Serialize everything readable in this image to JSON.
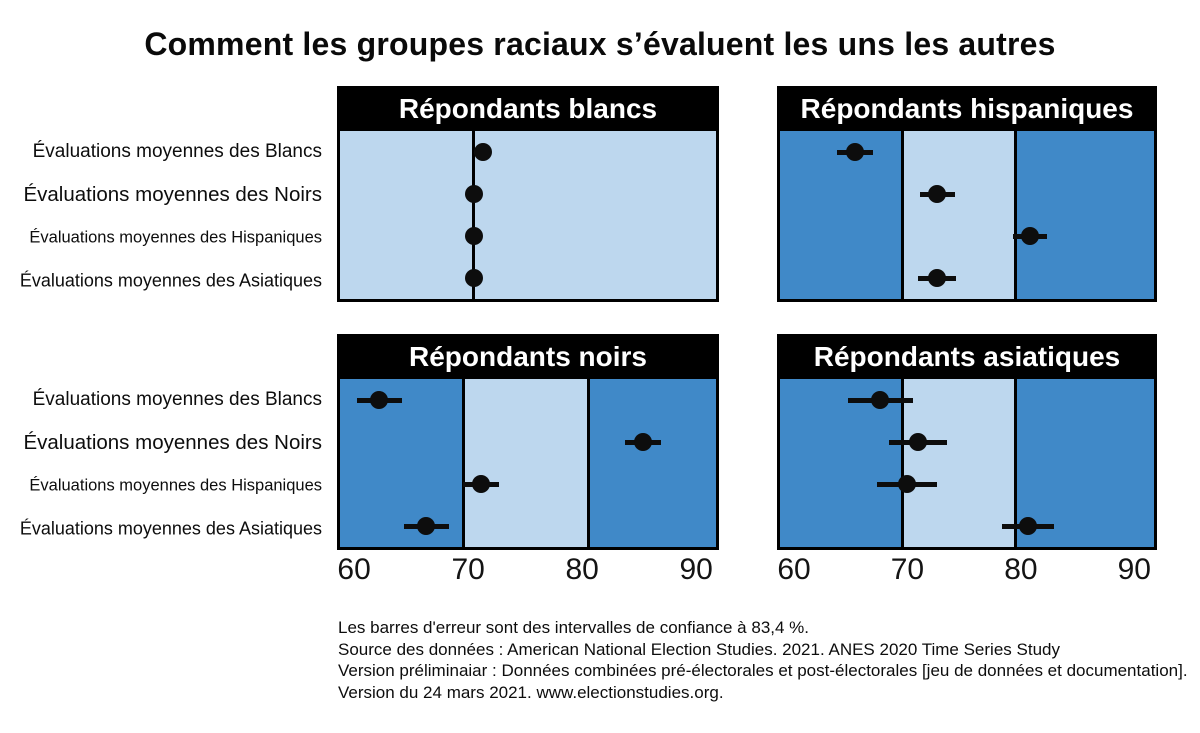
{
  "title": "Comment les groupes raciaux s’évaluent les uns les autres",
  "colors": {
    "dark_blue": "#4089c8",
    "light_blue": "#bdd7ee",
    "panel_header_bg": "#000000",
    "panel_header_text": "#ffffff",
    "point_color": "#0d0d0d"
  },
  "chart_data": {
    "type": "scatter",
    "title": "Comment les groupes raciaux s’évaluent les uns les autres",
    "categories": [
      "Évaluations moyennes des Blancs",
      "Évaluations moyennes des Noirs",
      "Évaluations moyennes des Hispaniques",
      "Évaluations moyennes des Asiatiques"
    ],
    "xlim": [
      58.5,
      92
    ],
    "xticks": [
      60,
      70,
      80,
      90
    ],
    "grid": false,
    "legend": "none",
    "panels": [
      {
        "title": "Répondants blancs",
        "values": [
          71.2,
          70.4,
          70.4,
          70.4
        ],
        "ci_halfwidth": [
          0.5,
          0.5,
          0.5,
          0.5
        ],
        "light_band": [
          58.5,
          92
        ],
        "ref_lines": [
          70.4
        ]
      },
      {
        "title": "Répondants hispaniques",
        "values": [
          65.2,
          72.6,
          80.9,
          72.6
        ],
        "ci_halfwidth": [
          1.6,
          1.6,
          1.5,
          1.7
        ],
        "light_band": [
          69.5,
          79.6
        ],
        "ref_lines": [
          69.5,
          79.6
        ]
      },
      {
        "title": "Répondants noirs",
        "values": [
          62.0,
          85.5,
          71.1,
          66.2
        ],
        "ci_halfwidth": [
          2.0,
          1.6,
          1.6,
          2.0
        ],
        "light_band": [
          69.5,
          80.6
        ],
        "ref_lines": [
          69.5,
          80.6
        ]
      },
      {
        "title": "Répondants asiatiques",
        "values": [
          67.5,
          70.9,
          69.9,
          80.7
        ],
        "ci_halfwidth": [
          2.9,
          2.6,
          2.7,
          2.3
        ],
        "light_band": [
          69.5,
          79.6
        ],
        "ref_lines": [
          69.5,
          79.6
        ]
      }
    ],
    "note": "Les barres d'erreur sont des intervalles de confiance à 83,4 %."
  },
  "footnote": {
    "line1": "Les barres d'erreur sont des intervalles de confiance à 83,4 %.",
    "line2": "Source des données : American National Election Studies. 2021. ANES 2020 Time Series Study",
    "line3": "Version préliminaiar : Données combinées pré-électorales et post-électorales [jeu de données et documentation].",
    "line4": "Version du 24 mars 2021. www.electionstudies.org."
  }
}
